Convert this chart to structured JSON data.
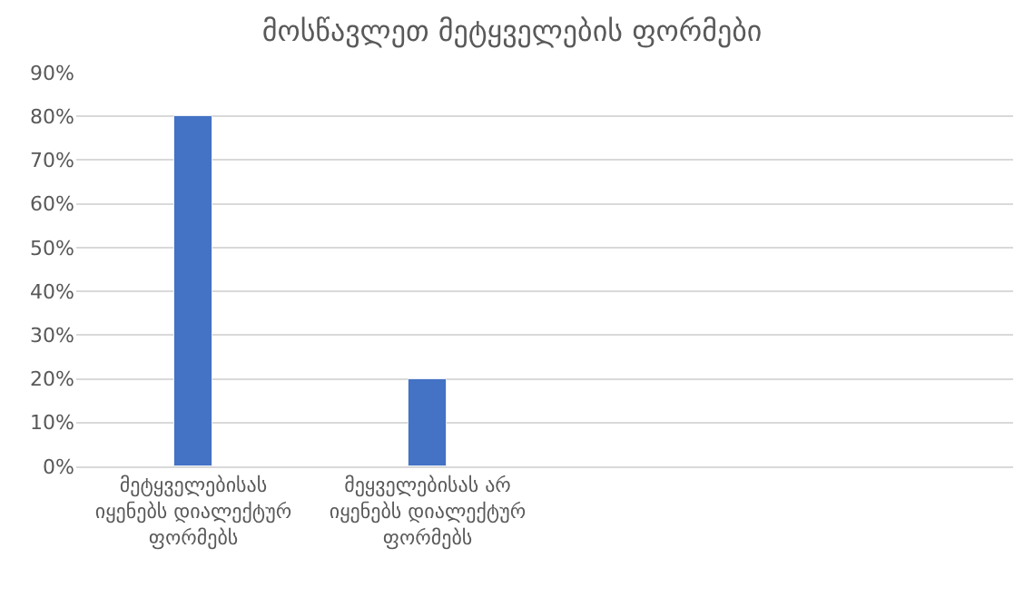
{
  "chart_data": {
    "type": "bar",
    "title": "მოსწავლეთ მეტყველების ფორმები",
    "categories": [
      "მეტყველებისას იყენებს დიალექტურ ფორმებს",
      "მეყველებისას არ იყენებს დიალექტურ ფორმებს",
      null,
      null
    ],
    "series": [
      {
        "color": "#4472c4",
        "values": [
          80,
          20,
          null,
          null
        ]
      }
    ],
    "ylim": [
      0,
      90
    ],
    "yticks": [
      {
        "value": 0,
        "label": "0%"
      },
      {
        "value": 10,
        "label": "10%"
      },
      {
        "value": 20,
        "label": "20%"
      },
      {
        "value": 30,
        "label": "30%"
      },
      {
        "value": 40,
        "label": "40%"
      },
      {
        "value": 50,
        "label": "50%"
      },
      {
        "value": 60,
        "label": "60%"
      },
      {
        "value": 70,
        "label": "70%"
      },
      {
        "value": 80,
        "label": "80%"
      },
      {
        "value": 90,
        "label": "90%"
      }
    ],
    "grid": "y",
    "legend": false
  }
}
